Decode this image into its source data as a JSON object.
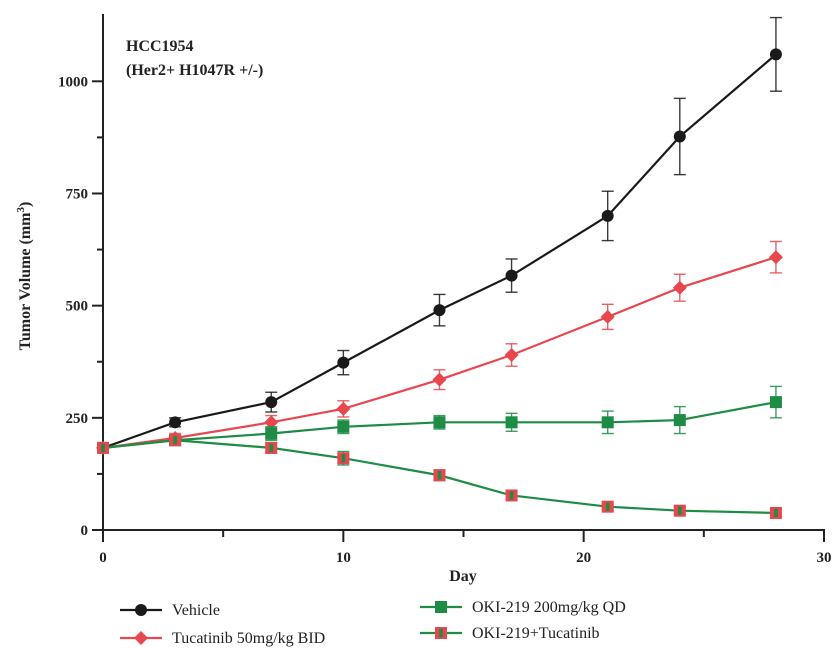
{
  "chart_data": {
    "type": "line",
    "title": [
      "HCC1954",
      "(Her2+ H1047R +/-)"
    ],
    "xlabel": "Day",
    "ylabel": "Tumor Volume (mm",
    "ylabel_sup": "3",
    "ylabel_close": ")",
    "xlim": [
      0,
      30
    ],
    "ylim": [
      0,
      1150
    ],
    "xticks": [
      0,
      10,
      20,
      30
    ],
    "xticks_minor": [
      5,
      15,
      25
    ],
    "yticks": [
      0,
      250,
      500,
      750,
      1000
    ],
    "yticks_minor": [
      125,
      375,
      625,
      875
    ],
    "grid": false,
    "legend_position": "bottom",
    "series": [
      {
        "name": "Vehicle",
        "color": "#1a1a1a",
        "marker": "circle",
        "x": [
          0,
          3,
          7,
          10,
          14,
          17,
          21,
          24,
          28
        ],
        "y": [
          183,
          240,
          285,
          373,
          490,
          567,
          700,
          877,
          1060
        ],
        "err": [
          8,
          10,
          22,
          27,
          35,
          37,
          55,
          85,
          82
        ]
      },
      {
        "name": "Tucatinib 50mg/kg BID",
        "color": "#e8474e",
        "marker": "diamond",
        "x": [
          0,
          3,
          7,
          10,
          14,
          17,
          21,
          24,
          28
        ],
        "y": [
          183,
          205,
          240,
          270,
          335,
          390,
          475,
          540,
          608
        ],
        "err": [
          8,
          10,
          15,
          18,
          22,
          25,
          28,
          30,
          35
        ]
      },
      {
        "name": "OKI-219 200mg/kg QD",
        "color": "#1e8c45",
        "marker": "square",
        "x": [
          0,
          3,
          7,
          10,
          14,
          17,
          21,
          24,
          28
        ],
        "y": [
          183,
          200,
          215,
          230,
          240,
          240,
          240,
          245,
          285
        ],
        "err": [
          8,
          10,
          15,
          15,
          15,
          20,
          25,
          30,
          35
        ]
      },
      {
        "name": "OKI-219+Tucatinib",
        "color": "#1e8c45",
        "edge_color": "#e8474e",
        "marker": "square-split",
        "x": [
          0,
          3,
          7,
          10,
          14,
          17,
          21,
          24,
          28
        ],
        "y": [
          183,
          200,
          183,
          160,
          122,
          77,
          52,
          43,
          38
        ],
        "err": [
          8,
          10,
          12,
          15,
          12,
          10,
          8,
          8,
          8
        ]
      }
    ]
  }
}
